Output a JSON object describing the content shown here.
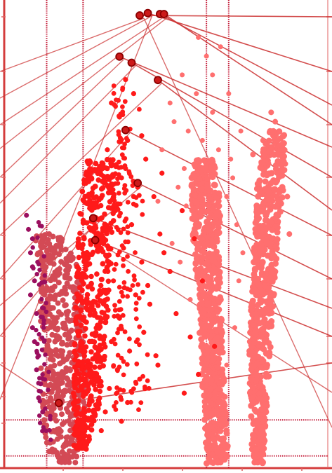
{
  "chart_data": {
    "type": "scatter",
    "title": "",
    "xlabel": "",
    "ylabel": "",
    "xlim": [
      -8,
      8
    ],
    "ylim": [
      0,
      100
    ],
    "grid": false,
    "legend": "none",
    "ticks_labeled": false,
    "colors": {
      "down_highlight": "#9b0f5f",
      "down_band": "#d34a55",
      "up_significant": "#ff1a1a",
      "not_significant": "#ff6f6f",
      "marked_point": "#cc1a1a",
      "marked_point_edge": "#8b0000",
      "label_line": "#cc3030",
      "reference_line": "#c41e3a",
      "frame": "#d43c3c",
      "axis_tick": "#e06060"
    },
    "reference_lines": {
      "vertical_x": [
        -5.9,
        -4.1,
        2.0,
        3.1
      ],
      "horizontal_y": [
        2.6,
        10.3
      ]
    },
    "series": [
      {
        "values": [
          {
            "x": -6.9,
            "y": 54
          },
          {
            "x": -6.8,
            "y": 51
          },
          {
            "x": -6.6,
            "y": 49
          },
          {
            "x": -6.7,
            "y": 46
          },
          {
            "x": -6.6,
            "y": 43
          },
          {
            "x": -6.5,
            "y": 40
          },
          {
            "x": -6.7,
            "y": 37
          },
          {
            "x": -6.4,
            "y": 33
          },
          {
            "x": -6.6,
            "y": 30
          },
          {
            "x": -6.5,
            "y": 27
          },
          {
            "x": -6.3,
            "y": 24
          },
          {
            "x": -6.4,
            "y": 21
          },
          {
            "x": -6.2,
            "y": 18
          },
          {
            "x": -6.3,
            "y": 15
          },
          {
            "x": -6.1,
            "y": 12
          }
        ]
      },
      {
        "band": [
          {
            "y": 1,
            "x0": -5.5,
            "x1": -4.5
          },
          {
            "y": 4,
            "x0": -5.9,
            "x1": -4.2
          },
          {
            "y": 10,
            "x0": -6.1,
            "x1": -4.0
          },
          {
            "y": 20,
            "x0": -6.2,
            "x1": -3.9
          },
          {
            "y": 30,
            "x0": -6.2,
            "x1": -4.0
          },
          {
            "y": 40,
            "x0": -6.3,
            "x1": -4.2
          },
          {
            "y": 46,
            "x0": -6.4,
            "x1": -4.6
          },
          {
            "y": 50,
            "x0": -6.5,
            "x1": -5.2
          }
        ]
      },
      {
        "band": [
          {
            "y": 4,
            "x0": -4.6,
            "x1": -3.9
          },
          {
            "y": 15,
            "x0": -4.6,
            "x1": -3.2
          },
          {
            "y": 30,
            "x0": -4.5,
            "x1": -2.9
          },
          {
            "y": 45,
            "x0": -4.4,
            "x1": -2.7
          },
          {
            "y": 58,
            "x0": -4.2,
            "x1": -2.5
          },
          {
            "y": 66,
            "x0": -3.9,
            "x1": -2.6
          }
        ],
        "values": [
          {
            "x": -2.7,
            "y": 78
          },
          {
            "x": -2.3,
            "y": 75
          },
          {
            "x": -1.6,
            "y": 80
          },
          {
            "x": -1.9,
            "y": 70
          },
          {
            "x": -2.9,
            "y": 68
          },
          {
            "x": -1.0,
            "y": 66
          },
          {
            "x": -2.2,
            "y": 62
          },
          {
            "x": -1.4,
            "y": 60
          },
          {
            "x": -0.6,
            "y": 58
          },
          {
            "x": -2.5,
            "y": 55
          },
          {
            "x": -1.7,
            "y": 52
          },
          {
            "x": -0.3,
            "y": 50
          },
          {
            "x": -2.1,
            "y": 47
          },
          {
            "x": -1.2,
            "y": 44
          },
          {
            "x": 0.2,
            "y": 42
          },
          {
            "x": -2.6,
            "y": 40
          },
          {
            "x": -1.5,
            "y": 37
          },
          {
            "x": -0.8,
            "y": 35
          },
          {
            "x": -2.3,
            "y": 32
          },
          {
            "x": -1.1,
            "y": 29
          },
          {
            "x": -2.7,
            "y": 27
          },
          {
            "x": -1.8,
            "y": 25
          },
          {
            "x": -0.5,
            "y": 24
          },
          {
            "x": -2.4,
            "y": 21
          },
          {
            "x": -1.3,
            "y": 19
          },
          {
            "x": -2.8,
            "y": 17
          },
          {
            "x": -1.9,
            "y": 14
          },
          {
            "x": -3.0,
            "y": 12
          },
          {
            "x": -2.2,
            "y": 10
          },
          {
            "x": -3.2,
            "y": 8
          },
          {
            "x": -2.0,
            "y": 83
          },
          {
            "x": -1.2,
            "y": 71
          },
          {
            "x": -0.2,
            "y": 63
          },
          {
            "x": 0.8,
            "y": 55
          },
          {
            "x": 1.4,
            "y": 49
          },
          {
            "x": -0.9,
            "y": 39
          },
          {
            "x": 0.5,
            "y": 33
          },
          {
            "x": 1.2,
            "y": 28
          },
          {
            "x": -0.4,
            "y": 22
          },
          {
            "x": 0.9,
            "y": 16
          },
          {
            "x": -3.3,
            "y": 23
          },
          {
            "x": -3.1,
            "y": 38
          },
          {
            "x": -2.0,
            "y": 64
          },
          {
            "x": -1.6,
            "y": 58
          },
          {
            "x": -0.1,
            "y": 46
          },
          {
            "x": 1.8,
            "y": 40
          },
          {
            "x": 2.4,
            "y": 26
          },
          {
            "x": 1.6,
            "y": 20
          }
        ]
      },
      {
        "band": [
          {
            "y": 1,
            "x0": 2.0,
            "x1": 3.1
          },
          {
            "y": 10,
            "x0": 1.9,
            "x1": 3.0
          },
          {
            "y": 25,
            "x0": 1.7,
            "x1": 2.8
          },
          {
            "y": 40,
            "x0": 1.5,
            "x1": 2.7
          },
          {
            "y": 52,
            "x0": 1.3,
            "x1": 2.7
          },
          {
            "y": 60,
            "x0": 1.2,
            "x1": 2.6
          },
          {
            "y": 66,
            "x0": 1.4,
            "x1": 2.4
          }
        ],
        "values": [
          {
            "x": 0.8,
            "y": 84
          },
          {
            "x": 1.5,
            "y": 80
          },
          {
            "x": 2.3,
            "y": 76
          },
          {
            "x": 1.1,
            "y": 72
          },
          {
            "x": 0.4,
            "y": 74
          },
          {
            "x": 1.8,
            "y": 70
          },
          {
            "x": 2.6,
            "y": 68
          },
          {
            "x": 0.9,
            "y": 64
          },
          {
            "x": 3.2,
            "y": 66
          },
          {
            "x": 2.0,
            "y": 88
          },
          {
            "x": 0.2,
            "y": 78
          },
          {
            "x": 3.0,
            "y": 58
          },
          {
            "x": 0.6,
            "y": 60
          },
          {
            "x": 3.5,
            "y": 52
          },
          {
            "x": 1.0,
            "y": 56
          },
          {
            "x": -0.2,
            "y": 68
          },
          {
            "x": 3.6,
            "y": 40
          },
          {
            "x": 0.3,
            "y": 48
          },
          {
            "x": 3.4,
            "y": 30
          },
          {
            "x": 1.2,
            "y": 36
          },
          {
            "x": 2.3,
            "y": 84
          },
          {
            "x": 3.3,
            "y": 62
          },
          {
            "x": -0.4,
            "y": 57
          },
          {
            "x": 3.7,
            "y": 72
          },
          {
            "x": 3.0,
            "y": 22
          },
          {
            "x": 0.7,
            "y": 44
          },
          {
            "x": 2.7,
            "y": 90
          },
          {
            "x": 3.1,
            "y": 80
          },
          {
            "x": 1.6,
            "y": 92
          },
          {
            "x": 3.8,
            "y": 46
          }
        ]
      },
      {
        "band": [
          {
            "y": 1,
            "x0": 4.3,
            "x1": 4.8
          },
          {
            "y": 8,
            "x0": 4.2,
            "x1": 4.9
          },
          {
            "y": 20,
            "x0": 4.1,
            "x1": 5.1
          },
          {
            "y": 35,
            "x0": 4.2,
            "x1": 5.3
          },
          {
            "y": 50,
            "x0": 4.4,
            "x1": 5.6
          },
          {
            "y": 60,
            "x0": 4.5,
            "x1": 5.8
          },
          {
            "y": 68,
            "x0": 4.8,
            "x1": 5.9
          },
          {
            "y": 72,
            "x0": 5.1,
            "x1": 5.9
          }
        ],
        "values": [
          {
            "x": 5.4,
            "y": 74
          },
          {
            "x": 5.8,
            "y": 71
          },
          {
            "x": 5.9,
            "y": 65
          },
          {
            "x": 6.0,
            "y": 58
          },
          {
            "x": 5.2,
            "y": 76
          },
          {
            "x": 4.8,
            "y": 70
          },
          {
            "x": 4.3,
            "y": 67
          },
          {
            "x": 6.1,
            "y": 50
          },
          {
            "x": 5.5,
            "y": 63
          }
        ]
      },
      {
        "values": [
          {
            "x": -1.3,
            "y": 96.7
          },
          {
            "x": -0.9,
            "y": 97.2
          },
          {
            "x": -0.3,
            "y": 97.0
          },
          {
            "x": -0.1,
            "y": 97.0
          },
          {
            "x": -2.3,
            "y": 87.9
          },
          {
            "x": -1.7,
            "y": 86.6
          },
          {
            "x": -0.4,
            "y": 82.9
          },
          {
            "x": -2.0,
            "y": 72.2
          },
          {
            "x": -1.4,
            "y": 60.9
          },
          {
            "x": -3.6,
            "y": 53.4
          },
          {
            "x": -3.5,
            "y": 48.7
          },
          {
            "x": -5.3,
            "y": 13.9
          }
        ]
      }
    ]
  }
}
